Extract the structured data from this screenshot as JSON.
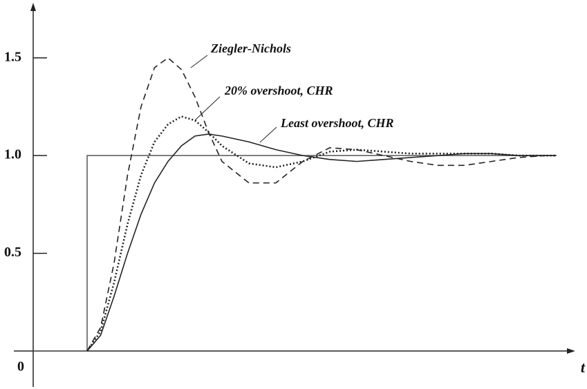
{
  "chart_data": {
    "type": "line",
    "x_label": "t",
    "xlim": [
      0,
      10
    ],
    "ylim": [
      0,
      1.75
    ],
    "yticks": [
      0,
      0.5,
      {
        "value": 1.0,
        "label": "1.0"
      },
      1.5
    ],
    "x": [
      1,
      1.25,
      1.5,
      1.75,
      2,
      2.25,
      2.5,
      2.75,
      3,
      3.25,
      3.5,
      4,
      4.5,
      5,
      5.5,
      6,
      6.5,
      7,
      7.5,
      8,
      8.5,
      9,
      9.5,
      9.7
    ],
    "series": [
      {
        "name": "Ziegler-Nichols",
        "color": "#222222",
        "dash": "dashed",
        "values": [
          0,
          0.12,
          0.45,
          0.9,
          1.25,
          1.45,
          1.5,
          1.44,
          1.3,
          1.12,
          0.97,
          0.86,
          0.86,
          0.97,
          1.04,
          1.03,
          1.0,
          0.97,
          0.95,
          0.95,
          0.97,
          0.99,
          1.0,
          1.0
        ]
      },
      {
        "name": "20% overshoot, CHR",
        "color": "#222222",
        "dash": "dotted",
        "values": [
          0,
          0.1,
          0.35,
          0.65,
          0.9,
          1.07,
          1.16,
          1.2,
          1.18,
          1.12,
          1.05,
          0.96,
          0.94,
          0.97,
          1.02,
          1.03,
          1.02,
          1.01,
          1.01,
          1.01,
          1.01,
          1.0,
          1.0,
          1.0
        ]
      },
      {
        "name": "Least overshoot, CHR",
        "color": "#222222",
        "dash": "solid",
        "values": [
          0,
          0.08,
          0.28,
          0.5,
          0.7,
          0.86,
          0.97,
          1.05,
          1.1,
          1.11,
          1.1,
          1.07,
          1.03,
          1.0,
          0.98,
          0.97,
          0.98,
          0.99,
          1.0,
          1.01,
          1.01,
          1.0,
          1.0,
          1.0
        ]
      }
    ],
    "reference": {
      "x": [
        0,
        1,
        1,
        9.7
      ],
      "values": [
        0,
        0,
        1,
        1
      ],
      "color": "#555555"
    }
  }
}
